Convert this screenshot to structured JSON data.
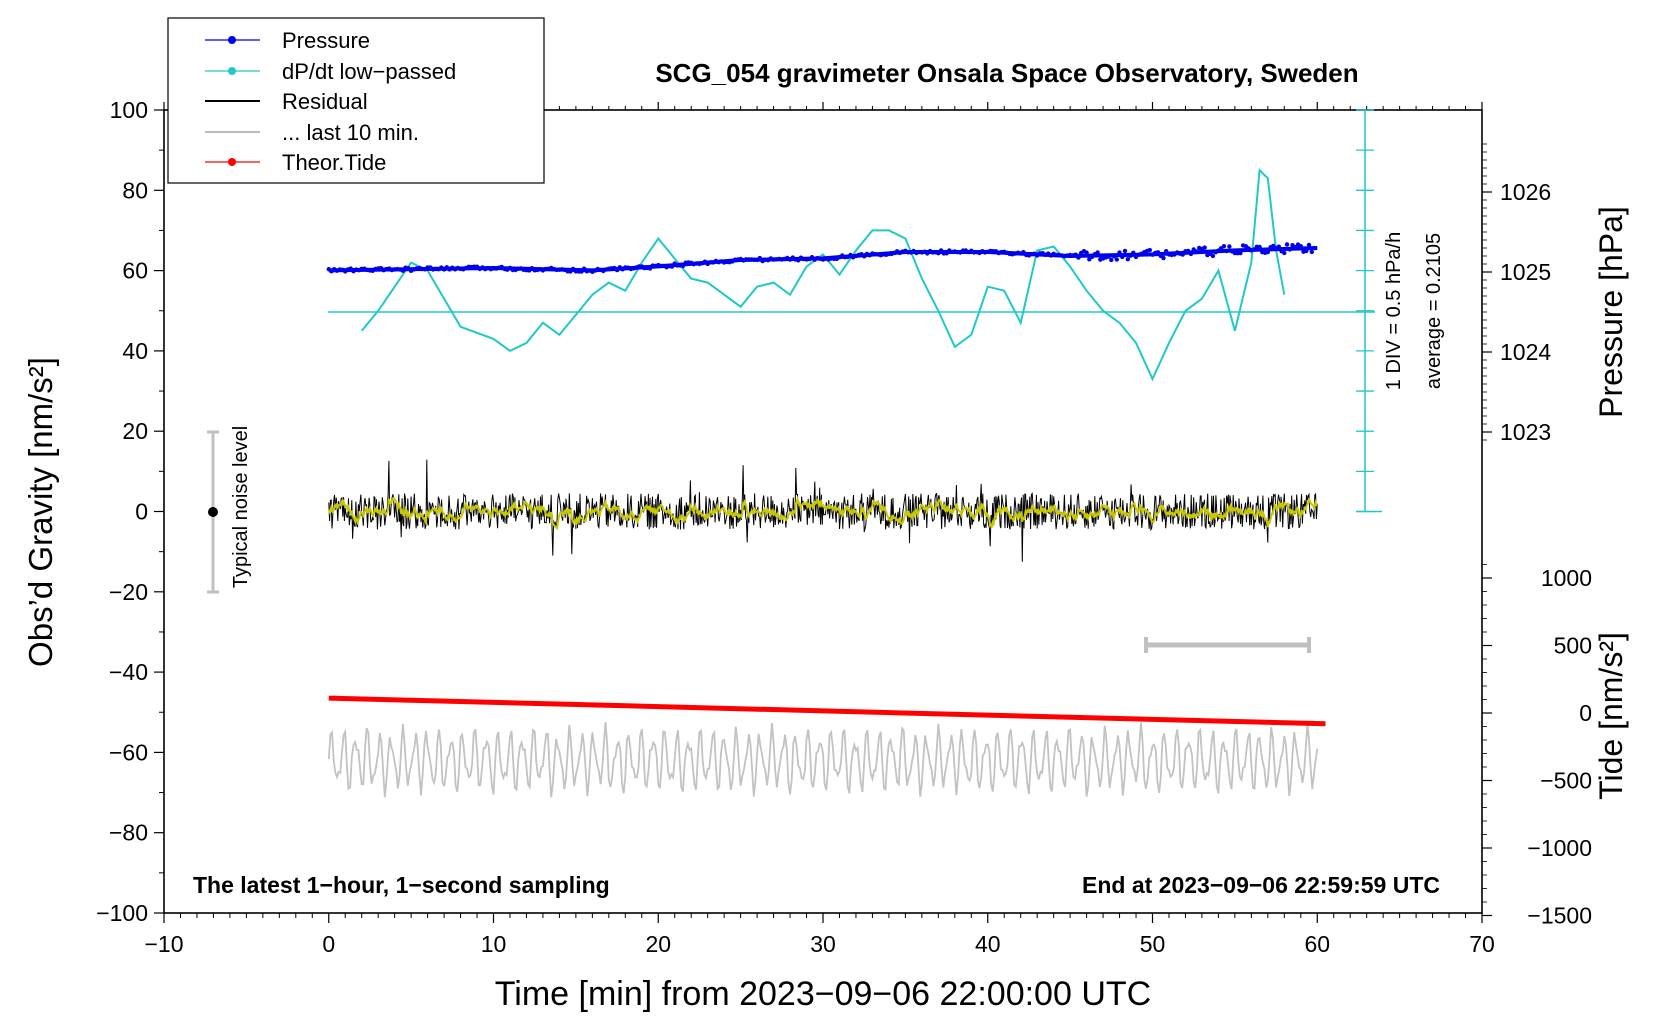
{
  "chart_data": {
    "type": "line",
    "title": "SCG_054 gravimeter Onsala Space Observatory, Sweden",
    "xlabel": "Time [min] from 2023−09−06 22:00:00 UTC",
    "ylabel_left": "Obs’d Gravity [nm/s²]",
    "ylabel_right_pressure": "Pressure [hPa]",
    "ylabel_right_tide": "Tide [nm/s²]",
    "xlim": [
      -10,
      70
    ],
    "ylim": [
      -100,
      100
    ],
    "x_ticks": [
      "−10",
      "0",
      "10",
      "20",
      "30",
      "40",
      "50",
      "60",
      "70"
    ],
    "y_ticks": [
      "100",
      "80",
      "60",
      "40",
      "20",
      "0",
      "−20",
      "−40",
      "−60",
      "−80",
      "−100"
    ],
    "pressure_ticks": [
      "1026",
      "1025",
      "1024",
      "1023"
    ],
    "tide_ticks": [
      "1000",
      "500",
      "0",
      "−500",
      "−1000",
      "−1500"
    ],
    "legend": [
      {
        "label": "Pressure",
        "color": "#0000ee",
        "marker": true
      },
      {
        "label": "dP/dt low−passed",
        "color": "#20c8c8",
        "marker": true
      },
      {
        "label": "Residual",
        "color": "#000000",
        "marker": false
      },
      {
        "label": "... last 10 min.",
        "color": "#bbbbbb",
        "marker": false
      },
      {
        "label": "Theor.Tide",
        "color": "#ff0000",
        "marker": true
      }
    ],
    "annotations": {
      "noise_label": "Typical noise level",
      "div_label": "1 DIV = 0.5 hPa/h",
      "avg_label": "average = 0.2105",
      "footer_left": "The latest 1−hour, 1−second sampling",
      "footer_right": "End at 2023−09−06 22:59:59 UTC"
    },
    "series": [
      {
        "name": "Pressure",
        "unit": "hPa",
        "x": [
          0,
          10,
          16,
          20,
          25,
          30,
          35,
          40,
          45,
          50,
          55,
          60
        ],
        "values": [
          1025.02,
          1025.05,
          1025.02,
          1025.07,
          1025.15,
          1025.17,
          1025.25,
          1025.25,
          1025.2,
          1025.22,
          1025.27,
          1025.3
        ]
      },
      {
        "name": "dP/dt low-passed",
        "unit": "nm/s2 display scale",
        "x": [
          2,
          3,
          5,
          6,
          8,
          10,
          11,
          12,
          13,
          14,
          16,
          17,
          18,
          19,
          20,
          21,
          22,
          23,
          25,
          26,
          27,
          28,
          29,
          30,
          31,
          32,
          33,
          34,
          35,
          36,
          37,
          38,
          39,
          40,
          41,
          42,
          43,
          44,
          45,
          46,
          47,
          48,
          49,
          50,
          51,
          52,
          53,
          54,
          55,
          56,
          56.5,
          57,
          57.5,
          58
        ],
        "values": [
          45,
          50,
          62,
          60,
          46,
          43,
          40,
          42,
          47,
          44,
          54,
          57,
          55,
          62,
          68,
          63,
          58,
          57,
          51,
          56,
          57,
          54,
          61,
          64,
          59,
          65,
          70,
          70,
          68,
          58,
          50,
          41,
          44,
          56,
          55,
          47,
          65,
          66,
          61,
          55,
          50,
          47,
          42,
          33,
          42,
          50,
          53,
          60,
          45,
          62,
          85,
          83,
          65,
          54
        ]
      },
      {
        "name": "Residual",
        "unit": "nm/s2",
        "x_range": [
          0,
          60
        ],
        "amplitude": 4.5,
        "max_spike": 11
      },
      {
        "name": "Residual smoothed",
        "unit": "nm/s2",
        "x_range": [
          0,
          60
        ],
        "amplitude": 1.2
      },
      {
        "name": "Last 10 min",
        "unit": "nm/s2",
        "x_range": [
          0,
          60
        ],
        "center": -62,
        "amplitude": 6
      },
      {
        "name": "Theor.Tide",
        "unit": "nm/s2",
        "x": [
          0,
          60.5
        ],
        "values": [
          110,
          -80
        ]
      },
      {
        "name": "Typical noise level",
        "x": -7,
        "y": 0,
        "error": 20
      },
      {
        "name": "10 min bar",
        "x": [
          50,
          60
        ],
        "y": -33
      },
      {
        "name": "dP/dt reference",
        "unit": "nm/s2",
        "x": [
          0,
          63
        ],
        "values": [
          50,
          50
        ]
      }
    ]
  }
}
